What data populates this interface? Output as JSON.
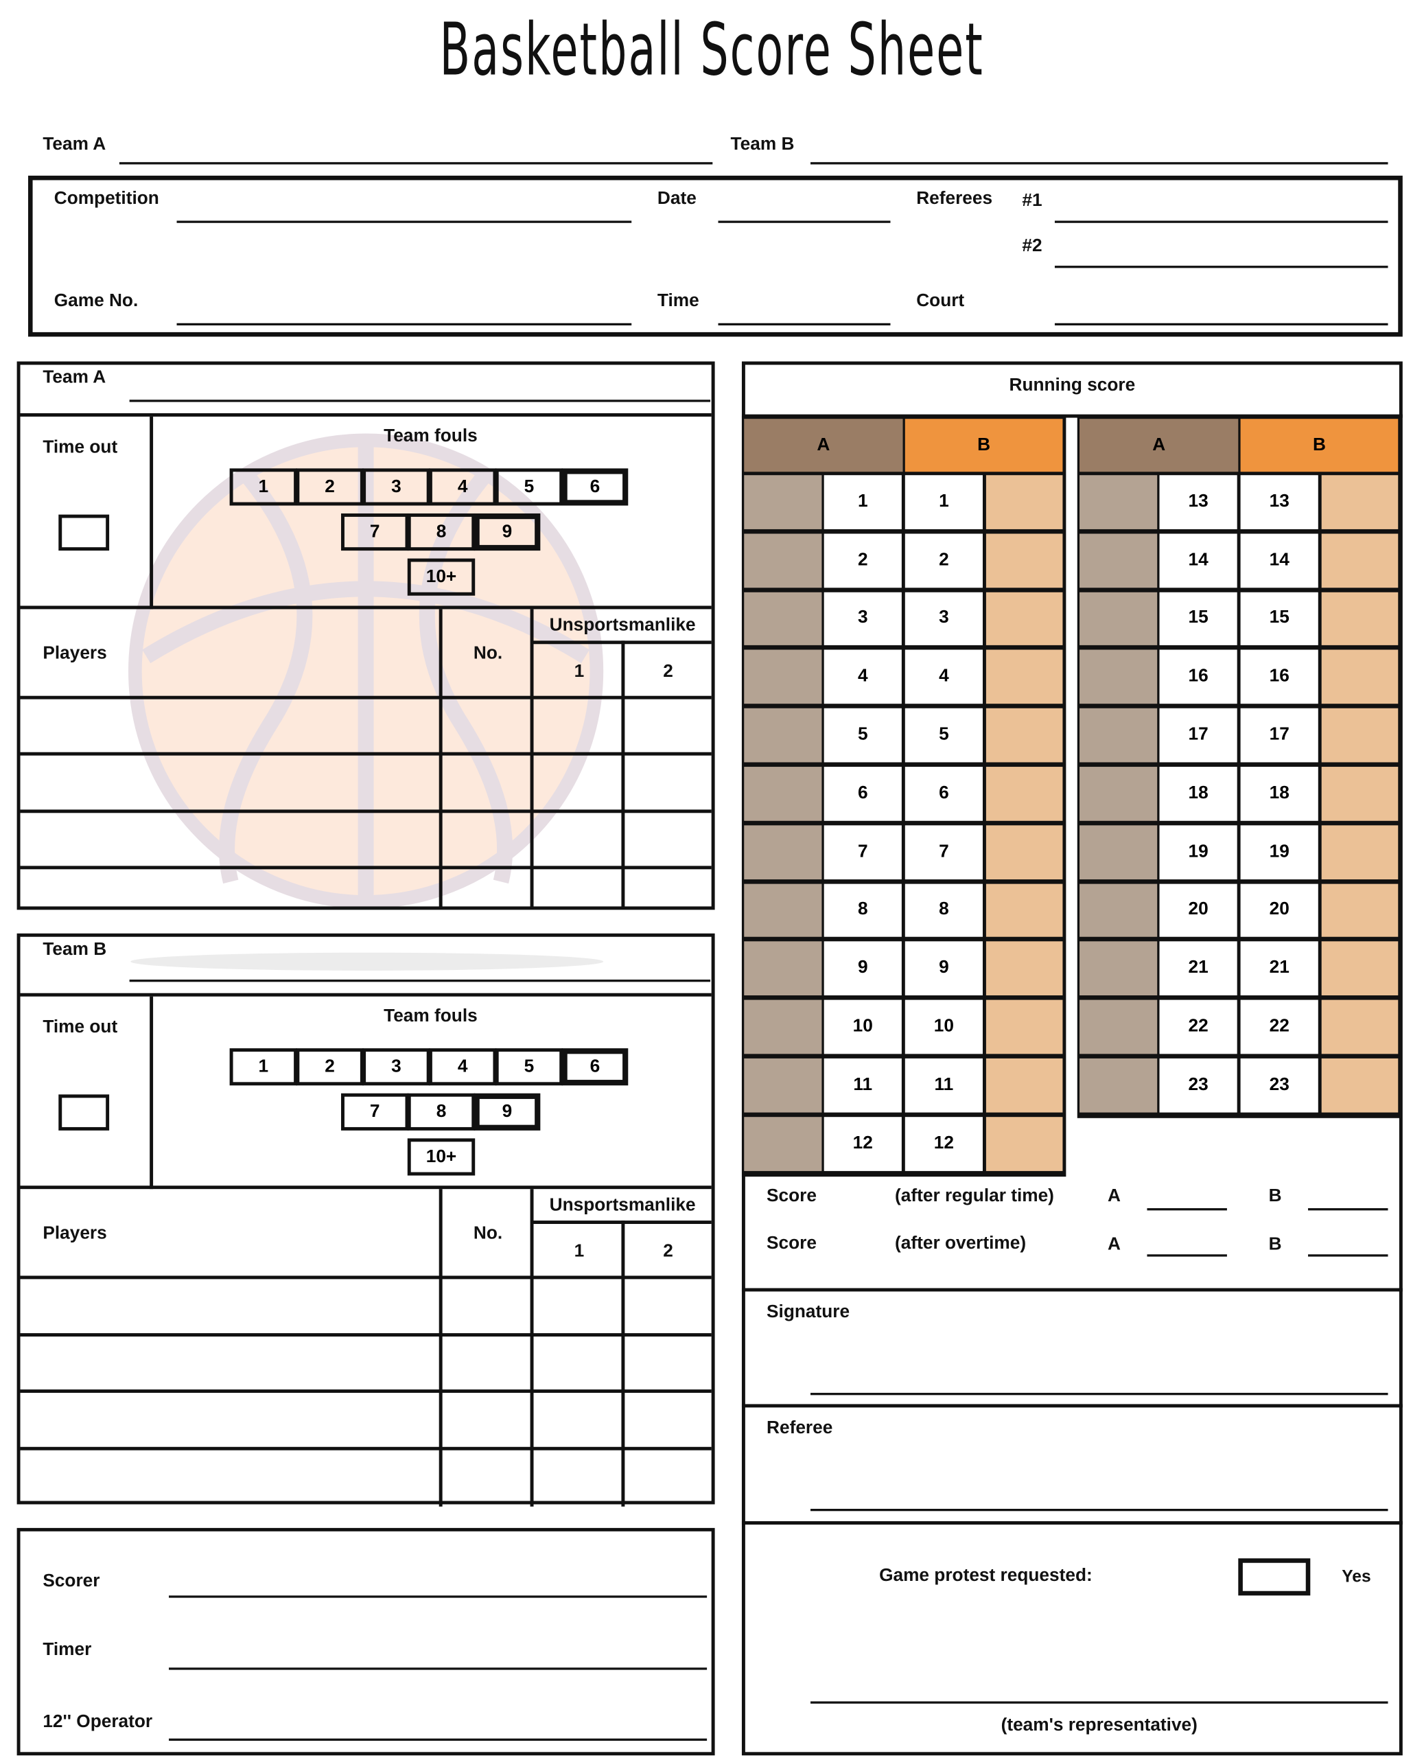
{
  "title": "Basketball Score Sheet",
  "header": {
    "team_a_label": "Team A",
    "team_b_label": "Team B",
    "competition": "Competition",
    "date": "Date",
    "referees": "Referees",
    "ref1": "#1",
    "ref2": "#2",
    "game_no": "Game No.",
    "time": "Time",
    "court": "Court"
  },
  "teams": [
    {
      "label": "Team A",
      "time_out": "Time out",
      "team_fouls": "Team fouls",
      "fouls": [
        "1",
        "2",
        "3",
        "4",
        "5",
        "6",
        "7",
        "8",
        "9",
        "10+"
      ],
      "players": "Players",
      "no": "No.",
      "unsportsmanlike": "Unsportsmanlike",
      "u1": "1",
      "u2": "2"
    },
    {
      "label": "Team B",
      "time_out": "Time out",
      "team_fouls": "Team fouls",
      "fouls": [
        "1",
        "2",
        "3",
        "4",
        "5",
        "6",
        "7",
        "8",
        "9",
        "10+"
      ],
      "players": "Players",
      "no": "No.",
      "unsportsmanlike": "Unsportsmanlike",
      "u1": "1",
      "u2": "2"
    }
  ],
  "officials": {
    "scorer": "Scorer",
    "timer": "Timer",
    "operator": "12'' Operator"
  },
  "running_score": {
    "title": "Running score",
    "col_a": "A",
    "col_b": "B",
    "left_numbers": [
      "1",
      "2",
      "3",
      "4",
      "5",
      "6",
      "7",
      "8",
      "9",
      "10",
      "11",
      "12"
    ],
    "right_numbers": [
      "13",
      "14",
      "15",
      "16",
      "17",
      "18",
      "19",
      "20",
      "21",
      "22",
      "23"
    ],
    "colors": {
      "a_header": "#9a7d65",
      "b_header": "#ef943e",
      "a_cell": "#b4a393",
      "b_cell": "#ebc196"
    }
  },
  "result": {
    "score": "Score",
    "after_regular": "(after regular time)",
    "after_overtime": "(after overtime)",
    "a": "A",
    "b": "B"
  },
  "signature": "Signature",
  "referee": "Referee",
  "protest": {
    "label": "Game protest requested:",
    "yes": "Yes",
    "representative": "(team's representative)"
  }
}
